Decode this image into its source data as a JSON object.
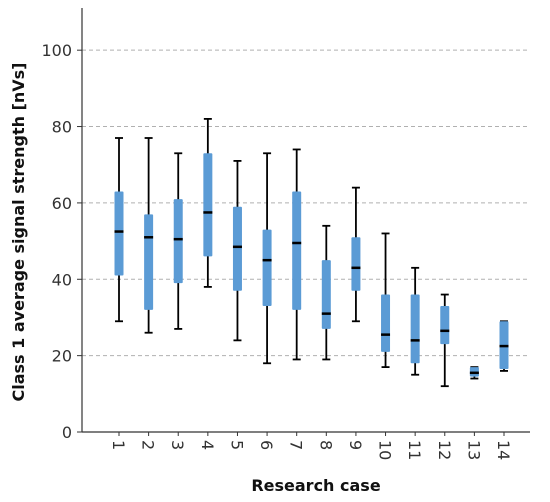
{
  "chart_data": {
    "type": "boxplot",
    "title": "",
    "xlabel": "Research case",
    "ylabel": "Class 1 average signal strength [nVs]",
    "ylim": [
      0,
      110
    ],
    "yticks": [
      0,
      20,
      40,
      60,
      80,
      100
    ],
    "grid": "horizontal dashed",
    "categories": [
      "1",
      "2",
      "3",
      "4",
      "5",
      "6",
      "7",
      "8",
      "9",
      "10",
      "11",
      "12",
      "13",
      "14"
    ],
    "boxes": [
      {
        "case": "1",
        "min": 29,
        "q1": 41,
        "median": 52.5,
        "q3": 63,
        "max": 77
      },
      {
        "case": "2",
        "min": 26,
        "q1": 32,
        "median": 51,
        "q3": 57,
        "max": 77
      },
      {
        "case": "3",
        "min": 27,
        "q1": 39,
        "median": 50.5,
        "q3": 61,
        "max": 73
      },
      {
        "case": "4",
        "min": 38,
        "q1": 46,
        "median": 57.5,
        "q3": 73,
        "max": 82
      },
      {
        "case": "5",
        "min": 24,
        "q1": 37,
        "median": 48.5,
        "q3": 59,
        "max": 71
      },
      {
        "case": "6",
        "min": 18,
        "q1": 33,
        "median": 45,
        "q3": 53,
        "max": 73
      },
      {
        "case": "7",
        "min": 19,
        "q1": 32,
        "median": 49.5,
        "q3": 63,
        "max": 74
      },
      {
        "case": "8",
        "min": 19,
        "q1": 27,
        "median": 31,
        "q3": 45,
        "max": 54
      },
      {
        "case": "9",
        "min": 29,
        "q1": 37,
        "median": 43,
        "q3": 51,
        "max": 64
      },
      {
        "case": "10",
        "min": 17,
        "q1": 21,
        "median": 25.5,
        "q3": 36,
        "max": 52
      },
      {
        "case": "11",
        "min": 15,
        "q1": 18,
        "median": 24,
        "q3": 36,
        "max": 43
      },
      {
        "case": "12",
        "min": 12,
        "q1": 23,
        "median": 26.5,
        "q3": 33,
        "max": 36
      },
      {
        "case": "13",
        "min": 14,
        "q1": 14.5,
        "median": 15.5,
        "q3": 17,
        "max": 17
      },
      {
        "case": "14",
        "min": 16,
        "q1": 16.5,
        "median": 22.5,
        "q3": 29,
        "max": 29
      }
    ],
    "colors": {
      "box": "#5b9bd5",
      "median": "#000000",
      "whisker": "#000000",
      "grid": "#b0b0b0",
      "axis": "#333333"
    }
  }
}
